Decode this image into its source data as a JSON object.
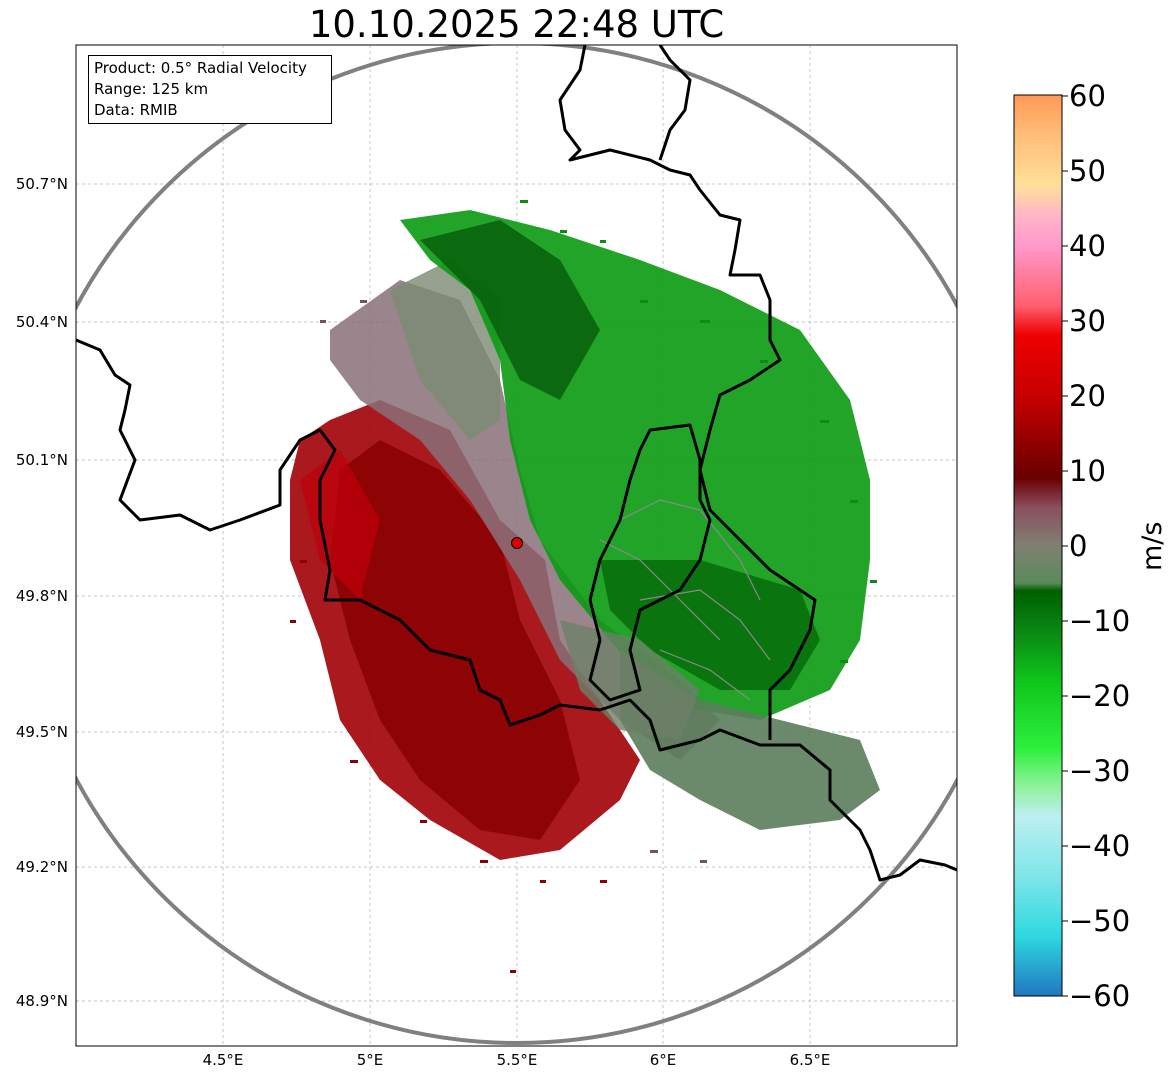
{
  "title": "10.10.2025 22:48 UTC",
  "info_box": {
    "product": "Product: 0.5° Radial Velocity",
    "range": "Range: 125 km",
    "data": "Data: RMIB"
  },
  "axes": {
    "lat_ticks": [
      "50.7°N",
      "50.4°N",
      "50.1°N",
      "49.8°N",
      "49.5°N",
      "49.2°N",
      "48.9°N"
    ],
    "lon_ticks": [
      "4.5°E",
      "5°E",
      "5.5°E",
      "6°E",
      "6.5°E"
    ]
  },
  "radar_site_marker": {
    "label": "radar site",
    "color": "#e00000"
  },
  "range_ring_color": "#808080",
  "colorbar": {
    "unit": "m/s",
    "min": -60,
    "max": 60,
    "ticks": [
      "60",
      "50",
      "40",
      "30",
      "20",
      "10",
      "0",
      "−10",
      "−20",
      "−30",
      "−40",
      "−50",
      "−60"
    ],
    "color_stops": [
      {
        "value": -60,
        "color": "#1f78c1"
      },
      {
        "value": -52,
        "color": "#2fd8e0"
      },
      {
        "value": -44,
        "color": "#7fe6ea"
      },
      {
        "value": -36,
        "color": "#bdeff0"
      },
      {
        "value": -32,
        "color": "#8df29a"
      },
      {
        "value": -27,
        "color": "#2cf03c"
      },
      {
        "value": -18,
        "color": "#0fc51a"
      },
      {
        "value": -12,
        "color": "#0a8c15"
      },
      {
        "value": -6,
        "color": "#005f00"
      },
      {
        "value": -5,
        "color": "#5a8a5a"
      },
      {
        "value": 0,
        "color": "#7f8072"
      },
      {
        "value": 5,
        "color": "#8a5060"
      },
      {
        "value": 9,
        "color": "#6a0000"
      },
      {
        "value": 20,
        "color": "#c80000"
      },
      {
        "value": 28,
        "color": "#f00000"
      },
      {
        "value": 32,
        "color": "#ff6070"
      },
      {
        "value": 40,
        "color": "#ff99cc"
      },
      {
        "value": 44,
        "color": "#ffb6c6"
      },
      {
        "value": 48,
        "color": "#ffe099"
      },
      {
        "value": 55,
        "color": "#ffbb77"
      },
      {
        "value": 60,
        "color": "#ff9955"
      }
    ]
  }
}
